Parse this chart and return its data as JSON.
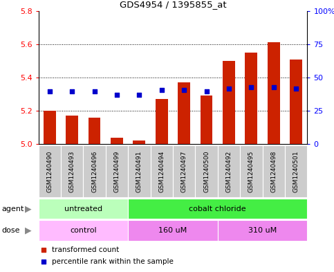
{
  "title": "GDS4954 / 1395855_at",
  "samples": [
    "GSM1240490",
    "GSM1240493",
    "GSM1240496",
    "GSM1240499",
    "GSM1240491",
    "GSM1240494",
    "GSM1240497",
    "GSM1240500",
    "GSM1240492",
    "GSM1240495",
    "GSM1240498",
    "GSM1240501"
  ],
  "red_values": [
    5.2,
    5.17,
    5.16,
    5.04,
    5.02,
    5.27,
    5.37,
    5.29,
    5.5,
    5.55,
    5.61,
    5.51
  ],
  "blue_values": [
    5.315,
    5.315,
    5.315,
    5.295,
    5.295,
    5.325,
    5.325,
    5.315,
    5.335,
    5.34,
    5.34,
    5.335
  ],
  "ylim_left": [
    5.0,
    5.8
  ],
  "yticks_left": [
    5.0,
    5.2,
    5.4,
    5.6,
    5.8
  ],
  "ylim_right": [
    0,
    100
  ],
  "yticks_right": [
    0,
    25,
    50,
    75,
    100
  ],
  "yticklabels_right": [
    "0",
    "25",
    "50",
    "75",
    "100%"
  ],
  "bar_bottom": 5.0,
  "red_color": "#cc2200",
  "blue_color": "#0000cc",
  "agent_groups": [
    {
      "label": "untreated",
      "start": 0,
      "end": 4,
      "color": "#bbffbb"
    },
    {
      "label": "cobalt chloride",
      "start": 4,
      "end": 12,
      "color": "#44ee44"
    }
  ],
  "dose_groups": [
    {
      "label": "control",
      "start": 0,
      "end": 4,
      "color": "#ffbbff"
    },
    {
      "label": "160 uM",
      "start": 4,
      "end": 8,
      "color": "#ee88ee"
    },
    {
      "label": "310 uM",
      "start": 8,
      "end": 12,
      "color": "#ee88ee"
    }
  ],
  "legend_items": [
    {
      "label": "transformed count",
      "color": "#cc2200"
    },
    {
      "label": "percentile rank within the sample",
      "color": "#0000cc"
    }
  ],
  "sample_box_color": "#cccccc",
  "plot_bg": "white"
}
